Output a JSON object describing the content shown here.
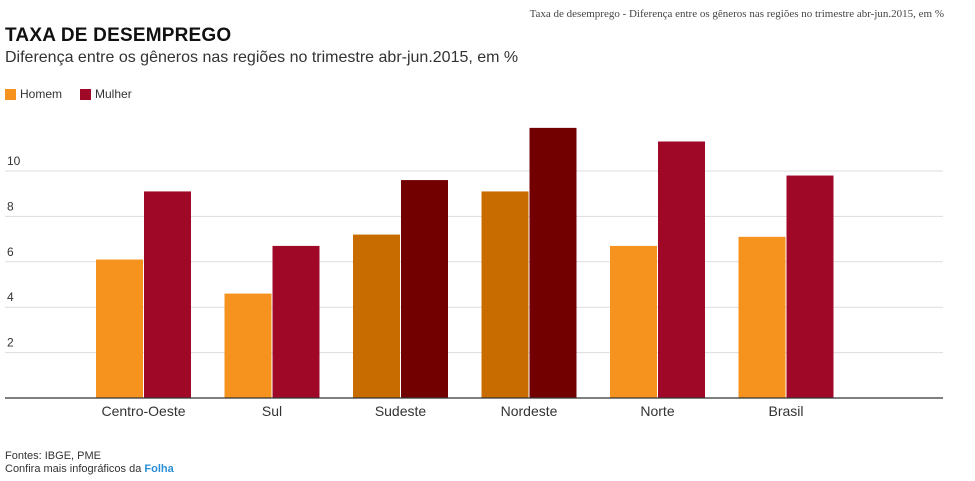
{
  "caption": "Taxa de desemprego - Diferença entre os gêneros nas regiões no trimestre abr-jun.2015, em %",
  "footer": {
    "sources": "Fontes: IBGE, PME",
    "more_text": "Confira mais infográficos da ",
    "link": "Folha"
  },
  "colors": {
    "homem": "#f6931f",
    "homem_highlight": "#c96c00",
    "mulher": "#a00828",
    "mulher_highlight": "#720000",
    "grid": "#dddddd",
    "axis": "#333333"
  },
  "chart_data": {
    "type": "bar",
    "title": "TAXA DE DESEMPREGO",
    "subtitle": "Diferença entre os gêneros nas regiões no trimestre abr-jun.2015, em %",
    "xlabel": "",
    "ylabel": "",
    "categories": [
      "Centro-Oeste",
      "Sul",
      "Sudeste",
      "Nordeste",
      "Norte",
      "Brasil"
    ],
    "series": [
      {
        "name": "Homem",
        "values": [
          6.1,
          4.6,
          7.2,
          9.1,
          6.7,
          7.1
        ]
      },
      {
        "name": "Mulher",
        "values": [
          9.1,
          6.7,
          9.6,
          11.9,
          11.3,
          9.8
        ]
      }
    ],
    "highlighted_categories": [
      "Sudeste",
      "Nordeste"
    ],
    "yticks": [
      2,
      4,
      6,
      8,
      10
    ],
    "ylim": [
      0,
      12
    ],
    "grid": true,
    "legend_position": "top-left"
  }
}
